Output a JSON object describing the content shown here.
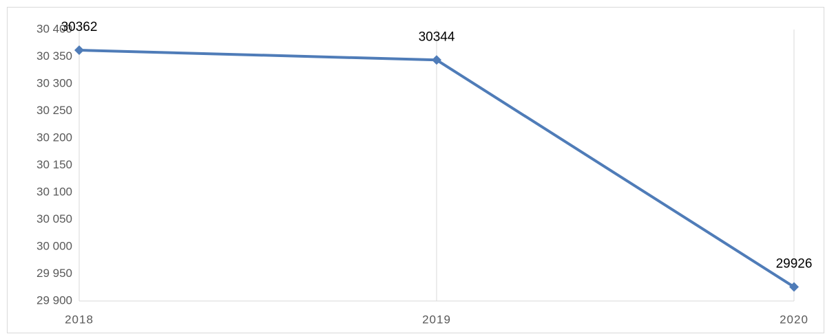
{
  "chart_data": {
    "type": "line",
    "categories": [
      "2018",
      "2019",
      "2020"
    ],
    "series": [
      {
        "color": "#4f7cb8",
        "values": [
          30362,
          30344,
          29926
        ]
      }
    ],
    "ylim": [
      29900,
      30400
    ],
    "yticks": [
      {
        "value": 29900,
        "label": "29 900"
      },
      {
        "value": 29950,
        "label": "29 950"
      },
      {
        "value": 30000,
        "label": "30 000"
      },
      {
        "value": 30050,
        "label": "30 050"
      },
      {
        "value": 30100,
        "label": "30 100"
      },
      {
        "value": 30150,
        "label": "30 150"
      },
      {
        "value": 30200,
        "label": "30 200"
      },
      {
        "value": 30250,
        "label": "30 250"
      },
      {
        "value": 30300,
        "label": "30 300"
      },
      {
        "value": 30350,
        "label": "30 350"
      },
      {
        "value": 30400,
        "label": "30 400"
      }
    ],
    "grid": "x"
  }
}
